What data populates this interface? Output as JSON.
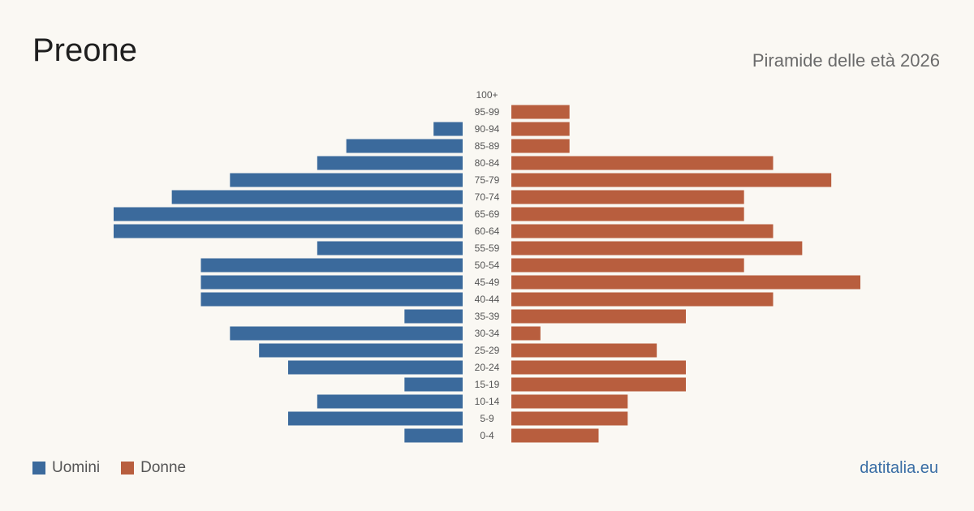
{
  "title": "Preone",
  "subtitle": "Piramide delle età 2026",
  "brand": "datitalia.eu",
  "colors": {
    "men": "#3b6a9c",
    "women": "#b85e3e"
  },
  "legend": {
    "men": "Uomini",
    "women": "Donne"
  },
  "chart_data": {
    "type": "bar",
    "orientation": "horizontal-pyramid",
    "categories": [
      "100+",
      "95-99",
      "90-94",
      "85-89",
      "80-84",
      "75-79",
      "70-74",
      "65-69",
      "60-64",
      "55-59",
      "50-54",
      "45-49",
      "40-44",
      "35-39",
      "30-34",
      "25-29",
      "20-24",
      "15-19",
      "10-14",
      "5-9",
      "0-4"
    ],
    "series": [
      {
        "name": "Uomini",
        "values": [
          0,
          0,
          1,
          4,
          5,
          8,
          10,
          12,
          12,
          5,
          9,
          9,
          9,
          2,
          8,
          7,
          6,
          2,
          5,
          6,
          2
        ]
      },
      {
        "name": "Donne",
        "values": [
          0,
          2,
          2,
          2,
          9,
          11,
          8,
          8,
          9,
          10,
          8,
          12,
          9,
          6,
          1,
          5,
          6,
          6,
          4,
          4,
          3
        ]
      }
    ],
    "xlim": [
      0,
      12
    ],
    "legend_position": "bottom-left",
    "grid": false
  }
}
